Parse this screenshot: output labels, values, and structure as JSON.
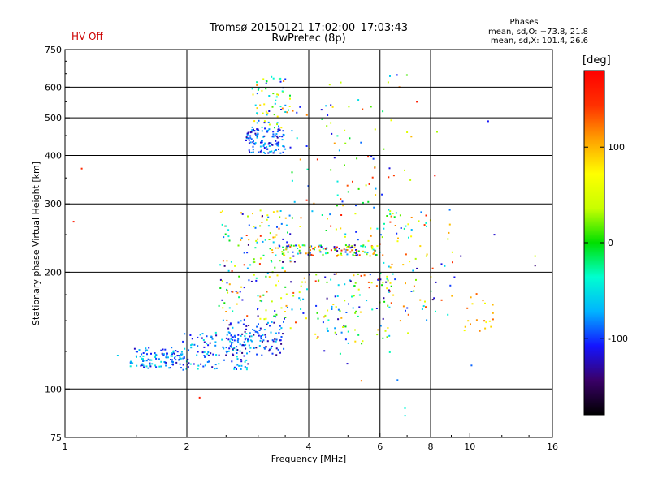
{
  "header": {
    "title_line1": "Tromsø 20150121 17:02:00–17:03:43",
    "title_line2": "RwPretec (8p)",
    "hv_status": "HV Off",
    "phases_title": "Phases",
    "phases_line1": "mean, sd,O: −73.8, 21.8",
    "phases_line2": "mean, sd,X: 101.4, 26.6",
    "colorbar_label": "[deg]"
  },
  "chart_data": {
    "type": "scatter",
    "xlabel": "Frequency [MHz]",
    "ylabel": "Stationary phase Virtual Height [km]",
    "xscale": "log",
    "yscale": "log",
    "xlim": [
      1,
      16
    ],
    "ylim": [
      75,
      750
    ],
    "xticks": [
      1,
      2,
      4,
      6,
      8,
      10,
      16
    ],
    "yticks": [
      75,
      100,
      200,
      300,
      400,
      500,
      600,
      750
    ],
    "xgrid_major": [
      2,
      4,
      6,
      8
    ],
    "ygrid_major": [
      100,
      200,
      300,
      400,
      500,
      600
    ],
    "grid": true,
    "colorbar": {
      "label": "[deg]",
      "ticks": [
        100,
        0,
        -100
      ],
      "range": [
        -180,
        180
      ],
      "colors": [
        "#000000",
        "#3a0068",
        "#1414ff",
        "#00b4ff",
        "#00ffd0",
        "#00e000",
        "#c8ff00",
        "#ffff00",
        "#ffa000",
        "#ff3000",
        "#ff0000"
      ]
    },
    "clusters": [
      {
        "f0": 1.45,
        "f1": 1.95,
        "h0": 113,
        "h1": 128,
        "n": 110,
        "p0": -130,
        "p1": -40
      },
      {
        "f0": 1.95,
        "f1": 2.9,
        "h0": 112,
        "h1": 140,
        "n": 130,
        "p0": -130,
        "p1": -40
      },
      {
        "f0": 2.5,
        "f1": 3.5,
        "h0": 122,
        "h1": 150,
        "n": 110,
        "p0": -140,
        "p1": -60
      },
      {
        "f0": 2.8,
        "f1": 3.5,
        "h0": 405,
        "h1": 470,
        "n": 120,
        "p0": -130,
        "p1": -60
      },
      {
        "f0": 2.9,
        "f1": 3.6,
        "h0": 470,
        "h1": 640,
        "n": 70,
        "p0": -120,
        "p1": 120
      },
      {
        "f0": 2.4,
        "f1": 3.7,
        "h0": 150,
        "h1": 290,
        "n": 170,
        "p0": -140,
        "p1": 150
      },
      {
        "f0": 3.3,
        "f1": 5.9,
        "h0": 220,
        "h1": 235,
        "n": 120,
        "p0": -140,
        "p1": 150
      },
      {
        "f0": 3.6,
        "f1": 6.4,
        "h0": 130,
        "h1": 200,
        "n": 110,
        "p0": -140,
        "p1": 150
      },
      {
        "f0": 3.6,
        "f1": 6.6,
        "h0": 240,
        "h1": 560,
        "n": 90,
        "p0": -120,
        "p1": 160
      },
      {
        "f0": 5.9,
        "f1": 9.4,
        "h0": 150,
        "h1": 290,
        "n": 80,
        "p0": -140,
        "p1": 150
      },
      {
        "f0": 9.5,
        "f1": 11.5,
        "h0": 140,
        "h1": 180,
        "n": 20,
        "p0": 60,
        "p1": 130
      },
      {
        "f0": 6.2,
        "f1": 7.2,
        "h0": 85,
        "h1": 650,
        "n": 25,
        "p0": -120,
        "p1": 150
      },
      {
        "f0": 4.3,
        "f1": 5.3,
        "h0": 90,
        "h1": 620,
        "n": 25,
        "p0": -130,
        "p1": 60
      }
    ],
    "extra_points": [
      [
        1.1,
        370,
        150
      ],
      [
        1.05,
        270,
        160
      ],
      [
        1.35,
        122,
        -60
      ],
      [
        2.15,
        95,
        160
      ],
      [
        11.1,
        490,
        -110
      ],
      [
        11.5,
        250,
        -120
      ],
      [
        14.5,
        208,
        -140
      ],
      [
        14.5,
        220,
        40
      ],
      [
        7.4,
        550,
        160
      ],
      [
        8.3,
        460,
        30
      ],
      [
        8.2,
        355,
        170
      ],
      [
        9.5,
        220,
        -130
      ],
      [
        10.1,
        115,
        -90
      ],
      [
        5.4,
        105,
        120
      ],
      [
        7.8,
        280,
        150
      ],
      [
        8.1,
        170,
        -150
      ],
      [
        4.4,
        230,
        160
      ],
      [
        4.55,
        228,
        170
      ],
      [
        4.7,
        232,
        155
      ],
      [
        6.35,
        640,
        -60
      ],
      [
        6.7,
        600,
        120
      ]
    ]
  }
}
